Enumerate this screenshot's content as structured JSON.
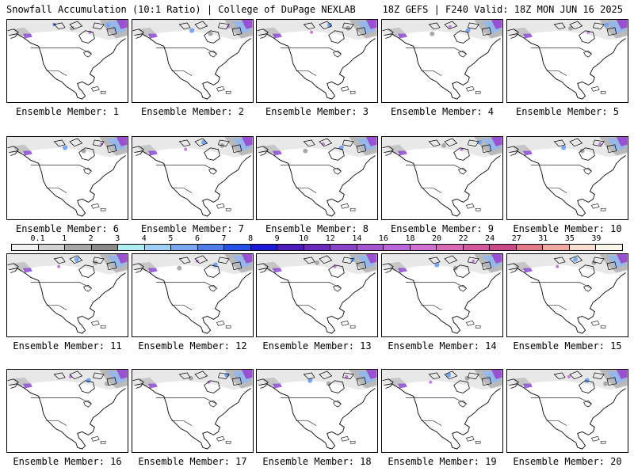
{
  "header": {
    "left": "Snowfall Accumulation (10:1 Ratio) | College of DuPage NEXLAB",
    "right": "18Z GEFS | F240 Valid: 18Z MON JUN 16 2025"
  },
  "members": [
    "Ensemble Member: 1",
    "Ensemble Member: 2",
    "Ensemble Member: 3",
    "Ensemble Member: 4",
    "Ensemble Member: 5",
    "Ensemble Member: 6",
    "Ensemble Member: 7",
    "Ensemble Member: 8",
    "Ensemble Member: 9",
    "Ensemble Member: 10",
    "Ensemble Member: 11",
    "Ensemble Member: 12",
    "Ensemble Member: 13",
    "Ensemble Member: 14",
    "Ensemble Member: 15",
    "Ensemble Member: 16",
    "Ensemble Member: 17",
    "Ensemble Member: 18",
    "Ensemble Member: 19",
    "Ensemble Member: 20"
  ],
  "colorbar": {
    "labels": [
      "0.1",
      "1",
      "2",
      "3",
      "4",
      "5",
      "6",
      "7",
      "8",
      "9",
      "10",
      "12",
      "14",
      "16",
      "18",
      "20",
      "22",
      "24",
      "27",
      "31",
      "35",
      "39"
    ],
    "colors": [
      "#f0f0f0",
      "#d2d2d2",
      "#a8a8a8",
      "#8a8a8a",
      "#aeeef0",
      "#9ed0f5",
      "#7aa8ee",
      "#4f7de8",
      "#2352e6",
      "#1b1bd8",
      "#4a1bb8",
      "#6b2bb8",
      "#8844c4",
      "#a455cf",
      "#bb66d8",
      "#cf6fcf",
      "#d86ab6",
      "#d2589e",
      "#c84a8a",
      "#e07a88",
      "#f0a8a0",
      "#f8ddd0",
      "#faf3e8"
    ]
  }
}
